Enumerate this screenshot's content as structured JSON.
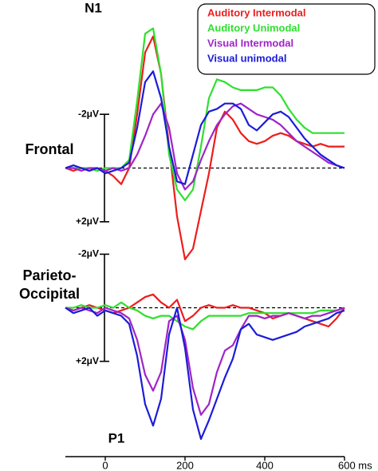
{
  "chart_data": [
    {
      "type": "line",
      "title": "Frontal",
      "annotation": "N1",
      "ylim": [
        2.6,
        -5.6
      ],
      "yticks": [
        {
          "value": -2,
          "label": "-2μV"
        },
        {
          "value": 2,
          "label": "+2μV"
        }
      ],
      "legend": "top-right",
      "series": [
        {
          "name": "Auditory Intermodal",
          "color": "#ee1c1c",
          "values": [
            0,
            0.1,
            0,
            0.1,
            0,
            0.1,
            0.3,
            0.6,
            0,
            -2.0,
            -4.3,
            -4.9,
            -3.5,
            -0.8,
            1.8,
            3.4,
            3.0,
            1.6,
            0.2,
            -1.5,
            -2.1,
            -1.8,
            -1.3,
            -1.0,
            -0.9,
            -1.0,
            -1.2,
            -1.3,
            -1.2,
            -1.0,
            -0.9,
            -0.8,
            -0.9,
            -0.8,
            -0.8,
            -0.8
          ]
        },
        {
          "name": "Auditory Unimodal",
          "color": "#2ee02e",
          "values": [
            0,
            0,
            0,
            0,
            0.1,
            0,
            0,
            0,
            -0.3,
            -2.5,
            -5.0,
            -5.2,
            -3.5,
            -0.5,
            0.8,
            1.2,
            0.8,
            -0.8,
            -2.6,
            -3.3,
            -3.2,
            -3.0,
            -2.9,
            -2.9,
            -2.9,
            -3.0,
            -3.0,
            -2.7,
            -2.2,
            -1.8,
            -1.5,
            -1.3,
            -1.3,
            -1.3,
            -1.3,
            -1.3
          ]
        },
        {
          "name": "Visual Intermodal",
          "color": "#a024c8",
          "values": [
            0,
            0,
            0.1,
            0,
            0,
            0.1,
            0,
            0.1,
            0,
            -0.5,
            -1.2,
            -2.0,
            -2.4,
            -1.5,
            0.2,
            0.8,
            0.5,
            -0.3,
            -1.0,
            -1.6,
            -2.0,
            -2.3,
            -2.4,
            -2.2,
            -2.0,
            -1.9,
            -1.8,
            -1.6,
            -1.3,
            -1.0,
            -0.8,
            -0.6,
            -0.4,
            -0.2,
            -0.1,
            0
          ]
        },
        {
          "name": "Visual unimodal",
          "color": "#1c1cd8",
          "values": [
            0,
            -0.1,
            0,
            0.1,
            0,
            0.2,
            0.1,
            0,
            -0.2,
            -1.5,
            -3.2,
            -3.6,
            -2.6,
            -0.8,
            0.5,
            0.6,
            -0.5,
            -1.6,
            -2.1,
            -2.2,
            -2.4,
            -2.4,
            -2.2,
            -1.6,
            -1.4,
            -1.7,
            -2.0,
            -2.1,
            -1.9,
            -1.5,
            -1.1,
            -0.8,
            -0.5,
            -0.3,
            -0.1,
            0
          ]
        }
      ]
    },
    {
      "type": "line",
      "title": [
        "Parieto-",
        "Occipital"
      ],
      "annotation": "P1",
      "x": [
        -100,
        -80,
        -60,
        -40,
        -20,
        0,
        20,
        40,
        60,
        80,
        100,
        120,
        140,
        160,
        180,
        200,
        220,
        240,
        260,
        280,
        300,
        320,
        340,
        360,
        380,
        400,
        420,
        440,
        460,
        480,
        500,
        520,
        540,
        560,
        580,
        600
      ],
      "xlim": [
        -100,
        600
      ],
      "xticks": [
        0,
        200,
        400,
        {
          "value": 600,
          "label": "600 ms"
        }
      ],
      "ylim": [
        5.2,
        -2.4
      ],
      "yticks": [
        {
          "value": -2,
          "label": "-2μV"
        },
        {
          "value": 2,
          "label": "+2μV"
        }
      ],
      "series": [
        {
          "color": "#ee1c1c",
          "values": [
            0,
            0.1,
            0,
            -0.1,
            0,
            0.1,
            0.2,
            0.1,
            0,
            -0.2,
            -0.4,
            -0.5,
            -0.2,
            0,
            -0.3,
            0.5,
            0.3,
            0,
            -0.1,
            0,
            0,
            -0.1,
            0,
            0,
            0.1,
            0.2,
            0.4,
            0.3,
            0.2,
            0.3,
            0.4,
            0.5,
            0.6,
            0.7,
            0.4,
            0
          ]
        },
        {
          "color": "#2ee02e",
          "values": [
            0,
            0,
            -0.1,
            0,
            0,
            -0.1,
            0,
            -0.2,
            0,
            0.1,
            0.3,
            0.4,
            0.3,
            0.3,
            0.5,
            0.7,
            0.8,
            0.5,
            0.3,
            0.3,
            0.3,
            0.3,
            0.3,
            0.2,
            0.2,
            0.2,
            0.2,
            0.2,
            0.2,
            0.2,
            0.2,
            0.2,
            0.1,
            0.1,
            0.1,
            0
          ]
        },
        {
          "color": "#a024c8",
          "values": [
            0,
            0.1,
            0,
            0.1,
            0.2,
            0,
            0.1,
            0.2,
            0.4,
            1.2,
            2.5,
            3.1,
            2.4,
            0.5,
            0.3,
            1.2,
            3.0,
            4.0,
            3.6,
            2.4,
            1.6,
            1.4,
            0.8,
            0.3,
            0.3,
            0.4,
            0.3,
            0.3,
            0.2,
            0.3,
            0.4,
            0.3,
            0.3,
            0.2,
            0.1,
            0
          ]
        },
        {
          "color": "#1c1cd8",
          "values": [
            0,
            0.2,
            0.1,
            0,
            0.3,
            0.1,
            0.2,
            0.3,
            0.6,
            1.8,
            3.6,
            4.4,
            3.4,
            1.0,
            0,
            1.5,
            3.8,
            4.9,
            4.2,
            3.4,
            2.6,
            1.9,
            0.8,
            0.6,
            1.0,
            1.1,
            1.2,
            1.1,
            1.0,
            0.9,
            0.7,
            0.6,
            0.5,
            0.4,
            0.2,
            0.1
          ]
        }
      ]
    }
  ]
}
